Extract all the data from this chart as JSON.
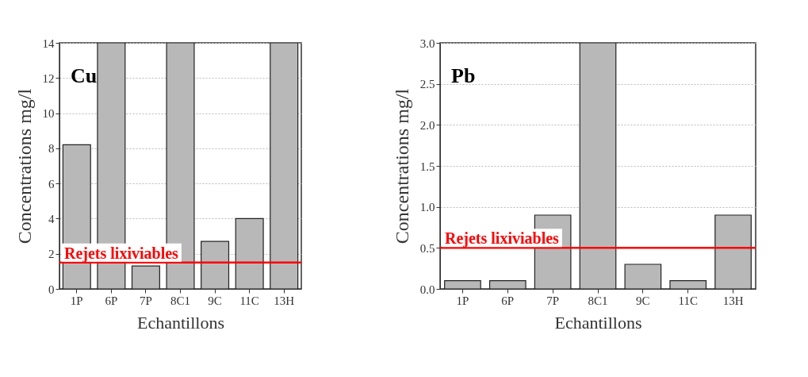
{
  "chart_data": [
    {
      "type": "bar",
      "title": "Cu",
      "xlabel": "Echantillons",
      "ylabel": "Concentrations mg/l",
      "categories": [
        "1P",
        "6P",
        "7P",
        "8C1",
        "9C",
        "11C",
        "13H"
      ],
      "series": [
        {
          "color": "#b8b8b8",
          "values": [
            8.2,
            14,
            1.3,
            14,
            2.7,
            4.0,
            14
          ]
        }
      ],
      "ylim": [
        0,
        14
      ],
      "yticks": [
        0,
        2,
        4,
        6,
        8,
        10,
        12,
        14
      ],
      "grid": "y",
      "ref_lines": [
        {
          "axis": "y",
          "value": 1.5,
          "label": "Rejets lixiviables",
          "color": "#ff0000"
        }
      ]
    },
    {
      "type": "bar",
      "title": "Pb",
      "xlabel": "Echantillons",
      "ylabel": "Concentrations mg/l",
      "categories": [
        "1P",
        "6P",
        "7P",
        "8C1",
        "9C",
        "11C",
        "13H"
      ],
      "series": [
        {
          "color": "#b8b8b8",
          "values": [
            0.1,
            0.1,
            0.9,
            3.0,
            0.3,
            0.1,
            0.9
          ]
        }
      ],
      "ylim": [
        0,
        3.0
      ],
      "yticks": [
        {
          "value": 0,
          "label": "0.0"
        },
        0.5,
        {
          "value": 1,
          "label": "1.0"
        },
        1.5,
        {
          "value": 2,
          "label": "2.0"
        },
        2.5,
        {
          "value": 3,
          "label": "3.0"
        }
      ],
      "grid": "y",
      "ref_lines": [
        {
          "axis": "y",
          "value": 0.5,
          "label": "Rejets lixiviables",
          "color": "#ff0000"
        }
      ]
    }
  ]
}
